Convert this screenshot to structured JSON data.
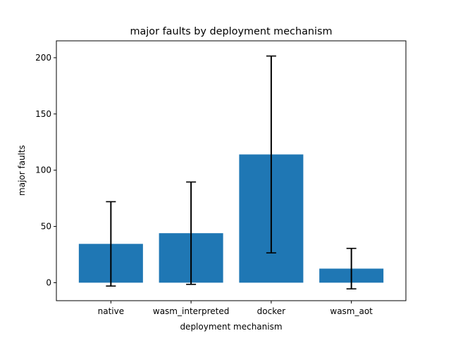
{
  "chart_data": {
    "type": "bar",
    "title": "major faults by deployment mechanism",
    "xlabel": "deployment mechanism",
    "ylabel": "major faults",
    "categories": [
      "native",
      "wasm_interpreted",
      "docker",
      "wasm_aot"
    ],
    "values": [
      34.5,
      44,
      114,
      12.5
    ],
    "errors": [
      37.5,
      45.5,
      87.5,
      18
    ],
    "ylim": [
      -16,
      215
    ],
    "yticks": [
      0,
      50,
      100,
      150,
      200
    ],
    "grid": false,
    "bar_color": "#1f77b4",
    "error_color": "#000000"
  }
}
